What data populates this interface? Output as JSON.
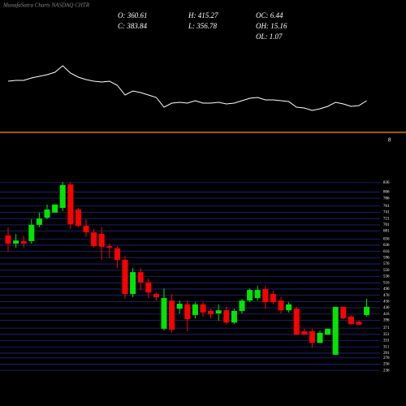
{
  "chart_data": {
    "type": "candlestick",
    "title": "MunafaSutra Charts NASDAQ CHTR",
    "stats": [
      {
        "label": "O: 360.61"
      },
      {
        "label": "H: 415.27"
      },
      {
        "label": "OC: 6.44"
      },
      {
        "label": "C: 383.84"
      },
      {
        "label": "L: 356.78"
      },
      {
        "label": "OH: 15.16"
      },
      {
        "label": "OL: 1.07"
      }
    ],
    "level_label": "8",
    "up_color": "#00e600",
    "down_color": "#ff0000",
    "grid_color": "#1c2a8a",
    "level_color": "#ff8c00",
    "line_color": "#ffffff",
    "ylim": [
      226,
      846
    ],
    "yticks": [
      836,
      806,
      786,
      761,
      741,
      721,
      701,
      681,
      656,
      636,
      616,
      596,
      576,
      556,
      536,
      516,
      496,
      476,
      456,
      436,
      416,
      396,
      371,
      351,
      331,
      311,
      291,
      276,
      256,
      236
    ],
    "open": [
      667,
      641,
      649,
      649,
      701,
      724,
      740,
      755,
      830,
      750,
      698,
      677,
      672,
      633,
      626,
      589,
      480,
      550,
      517,
      480,
      369,
      459,
      433,
      447,
      413,
      447,
      426,
      418,
      428,
      389,
      426,
      459,
      467,
      496,
      480,
      459,
      428,
      433,
      361,
      361,
      324,
      350,
      286,
      439,
      408,
      392,
      413
    ],
    "high": [
      693,
      672,
      667,
      719,
      740,
      766,
      766,
      838,
      838,
      755,
      719,
      688,
      693,
      641,
      633,
      602,
      563,
      563,
      530,
      485,
      498,
      480,
      459,
      459,
      454,
      454,
      433,
      447,
      439,
      433,
      465,
      498,
      506,
      506,
      491,
      470,
      454,
      439,
      369,
      369,
      363,
      369,
      439,
      439,
      413,
      395,
      465
    ],
    "low": [
      615,
      628,
      628,
      641,
      693,
      719,
      740,
      745,
      688,
      693,
      662,
      628,
      589,
      594,
      563,
      465,
      470,
      491,
      467,
      459,
      363,
      356,
      418,
      361,
      402,
      408,
      402,
      395,
      382,
      384,
      418,
      454,
      459,
      433,
      447,
      418,
      421,
      350,
      350,
      309,
      324,
      350,
      286,
      400,
      382,
      382,
      408
    ],
    "close": [
      641,
      651,
      641,
      701,
      721,
      750,
      766,
      828,
      703,
      698,
      677,
      633,
      631,
      628,
      589,
      480,
      550,
      517,
      485,
      470,
      467,
      366,
      449,
      400,
      447,
      421,
      415,
      428,
      389,
      426,
      459,
      493,
      493,
      454,
      454,
      428,
      447,
      350,
      350,
      324,
      356,
      369,
      439,
      402,
      384,
      382,
      439
    ],
    "line": {
      "ylim": [
        0,
        100
      ],
      "values": [
        60,
        61,
        61,
        64,
        66,
        68,
        71,
        79,
        70,
        65,
        62,
        60,
        59,
        60,
        55,
        43,
        48,
        46,
        43,
        40,
        28,
        33,
        34,
        33,
        36,
        33,
        33,
        34,
        32,
        33,
        36,
        39,
        40,
        37,
        37,
        36,
        35,
        28,
        27,
        24,
        26,
        29,
        34,
        32,
        29,
        30,
        36
      ]
    }
  }
}
